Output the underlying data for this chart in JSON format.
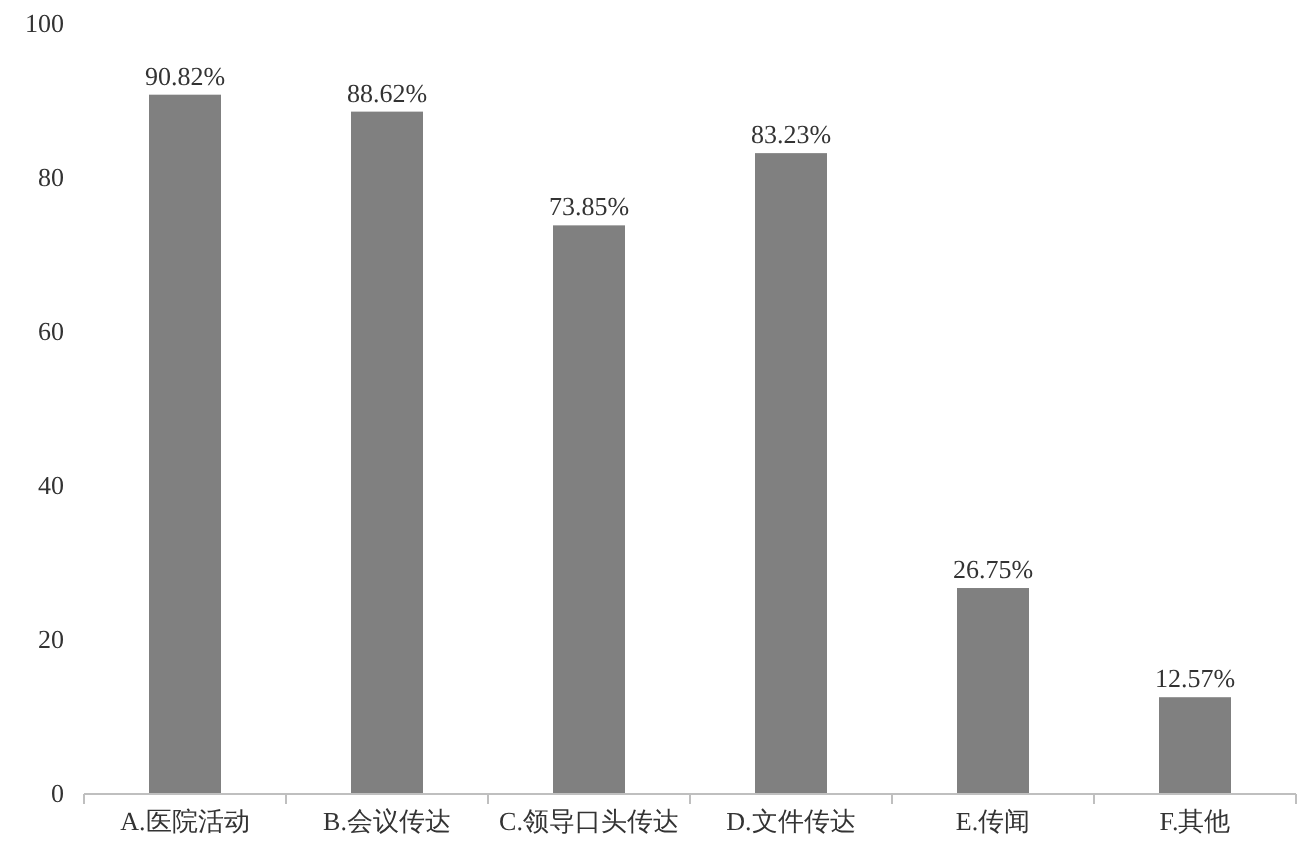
{
  "chart_data": {
    "type": "bar",
    "categories": [
      "A.医院活动",
      "B.会议传达",
      "C.领导口头传达",
      "D.文件传达",
      "E.传闻",
      "F.其他"
    ],
    "values": [
      90.82,
      88.62,
      73.85,
      83.23,
      26.75,
      12.57
    ],
    "value_labels": [
      "90.82%",
      "88.62%",
      "73.85%",
      "83.23%",
      "26.75%",
      "12.57%"
    ],
    "color": "#808080",
    "ylim": [
      0,
      100
    ],
    "yticks": [
      0,
      20,
      40,
      60,
      80,
      100
    ],
    "grid": false
  }
}
